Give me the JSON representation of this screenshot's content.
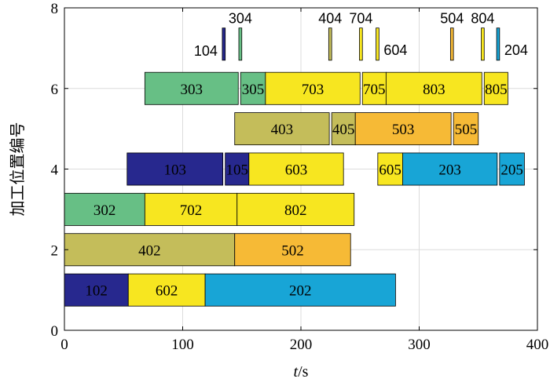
{
  "chart_data": {
    "type": "gantt",
    "xlabel_var": "t",
    "xlabel_unit": "/s",
    "ylabel": "加工位置编号",
    "xlim": [
      0,
      400
    ],
    "ylim": [
      0,
      8
    ],
    "xticks": [
      "0",
      "100",
      "200",
      "300",
      "400"
    ],
    "yticks": [
      "0",
      "2",
      "4",
      "6",
      "8"
    ],
    "grid": true,
    "colors": {
      "1": "#27288e",
      "2": "#18a5d6",
      "3": "#67bf85",
      "4": "#c4bd5a",
      "5": "#f6ba36",
      "6": "#f7e620",
      "7": "#f7e620",
      "8": "#f7e620"
    },
    "bars": [
      {
        "label": "102",
        "group": "1",
        "start": 0,
        "end": 54,
        "y0": 0.6,
        "y1": 1.4
      },
      {
        "label": "602",
        "group": "6",
        "start": 54,
        "end": 119,
        "y0": 0.6,
        "y1": 1.4
      },
      {
        "label": "202",
        "group": "2",
        "start": 119,
        "end": 280,
        "y0": 0.6,
        "y1": 1.4
      },
      {
        "label": "402",
        "group": "4",
        "start": 0,
        "end": 144,
        "y0": 1.6,
        "y1": 2.4
      },
      {
        "label": "502",
        "group": "5",
        "start": 144,
        "end": 242,
        "y0": 1.6,
        "y1": 2.4
      },
      {
        "label": "302",
        "group": "3",
        "start": 0,
        "end": 68,
        "y0": 2.6,
        "y1": 3.4
      },
      {
        "label": "702",
        "group": "7",
        "start": 68,
        "end": 146,
        "y0": 2.6,
        "y1": 3.4
      },
      {
        "label": "802",
        "group": "8",
        "start": 146,
        "end": 245,
        "y0": 2.6,
        "y1": 3.4
      },
      {
        "label": "103",
        "group": "1",
        "start": 53,
        "end": 134,
        "y0": 3.6,
        "y1": 4.4
      },
      {
        "label": "105",
        "group": "1",
        "start": 136,
        "end": 156,
        "y0": 3.6,
        "y1": 4.4
      },
      {
        "label": "603",
        "group": "6",
        "start": 156,
        "end": 236,
        "y0": 3.6,
        "y1": 4.4
      },
      {
        "label": "605",
        "group": "6",
        "start": 265,
        "end": 286,
        "y0": 3.6,
        "y1": 4.4
      },
      {
        "label": "203",
        "group": "2",
        "start": 286,
        "end": 366,
        "y0": 3.6,
        "y1": 4.4
      },
      {
        "label": "205",
        "group": "2",
        "start": 368,
        "end": 389,
        "y0": 3.6,
        "y1": 4.4
      },
      {
        "label": "403",
        "group": "4",
        "start": 144,
        "end": 224,
        "y0": 4.6,
        "y1": 5.4
      },
      {
        "label": "405",
        "group": "4",
        "start": 226,
        "end": 246,
        "y0": 4.6,
        "y1": 5.4
      },
      {
        "label": "503",
        "group": "5",
        "start": 246,
        "end": 327,
        "y0": 4.6,
        "y1": 5.4
      },
      {
        "label": "505",
        "group": "5",
        "start": 329,
        "end": 350,
        "y0": 4.6,
        "y1": 5.4
      },
      {
        "label": "303",
        "group": "3",
        "start": 68,
        "end": 147,
        "y0": 5.6,
        "y1": 6.4
      },
      {
        "label": "305",
        "group": "3",
        "start": 149,
        "end": 170,
        "y0": 5.6,
        "y1": 6.4
      },
      {
        "label": "703",
        "group": "7",
        "start": 170,
        "end": 250,
        "y0": 5.6,
        "y1": 6.4
      },
      {
        "label": "705",
        "group": "7",
        "start": 252,
        "end": 272,
        "y0": 5.6,
        "y1": 6.4
      },
      {
        "label": "803",
        "group": "8",
        "start": 272,
        "end": 353,
        "y0": 5.6,
        "y1": 6.4
      },
      {
        "label": "805",
        "group": "8",
        "start": 355,
        "end": 375,
        "y0": 5.6,
        "y1": 6.4
      }
    ],
    "markers": [
      {
        "label": "104",
        "group": "1",
        "start": 133.5,
        "end": 136,
        "y0": 6.7,
        "y1": 7.5,
        "label_side": "left"
      },
      {
        "label": "304",
        "group": "3",
        "start": 147.5,
        "end": 150,
        "y0": 6.7,
        "y1": 7.5,
        "label_side": "top"
      },
      {
        "label": "404",
        "group": "4",
        "start": 223.5,
        "end": 226,
        "y0": 6.7,
        "y1": 7.5,
        "label_side": "top"
      },
      {
        "label": "704",
        "group": "7",
        "start": 249.5,
        "end": 252,
        "y0": 6.7,
        "y1": 7.5,
        "label_side": "top"
      },
      {
        "label": "604",
        "group": "6",
        "start": 263.5,
        "end": 266,
        "y0": 6.7,
        "y1": 7.5,
        "label_side": "right"
      },
      {
        "label": "504",
        "group": "5",
        "start": 326.5,
        "end": 329,
        "y0": 6.7,
        "y1": 7.5,
        "label_side": "top"
      },
      {
        "label": "804",
        "group": "8",
        "start": 352.5,
        "end": 355,
        "y0": 6.7,
        "y1": 7.5,
        "label_side": "top"
      },
      {
        "label": "204",
        "group": "2",
        "start": 365.5,
        "end": 368,
        "y0": 6.7,
        "y1": 7.5,
        "label_side": "right"
      }
    ]
  }
}
